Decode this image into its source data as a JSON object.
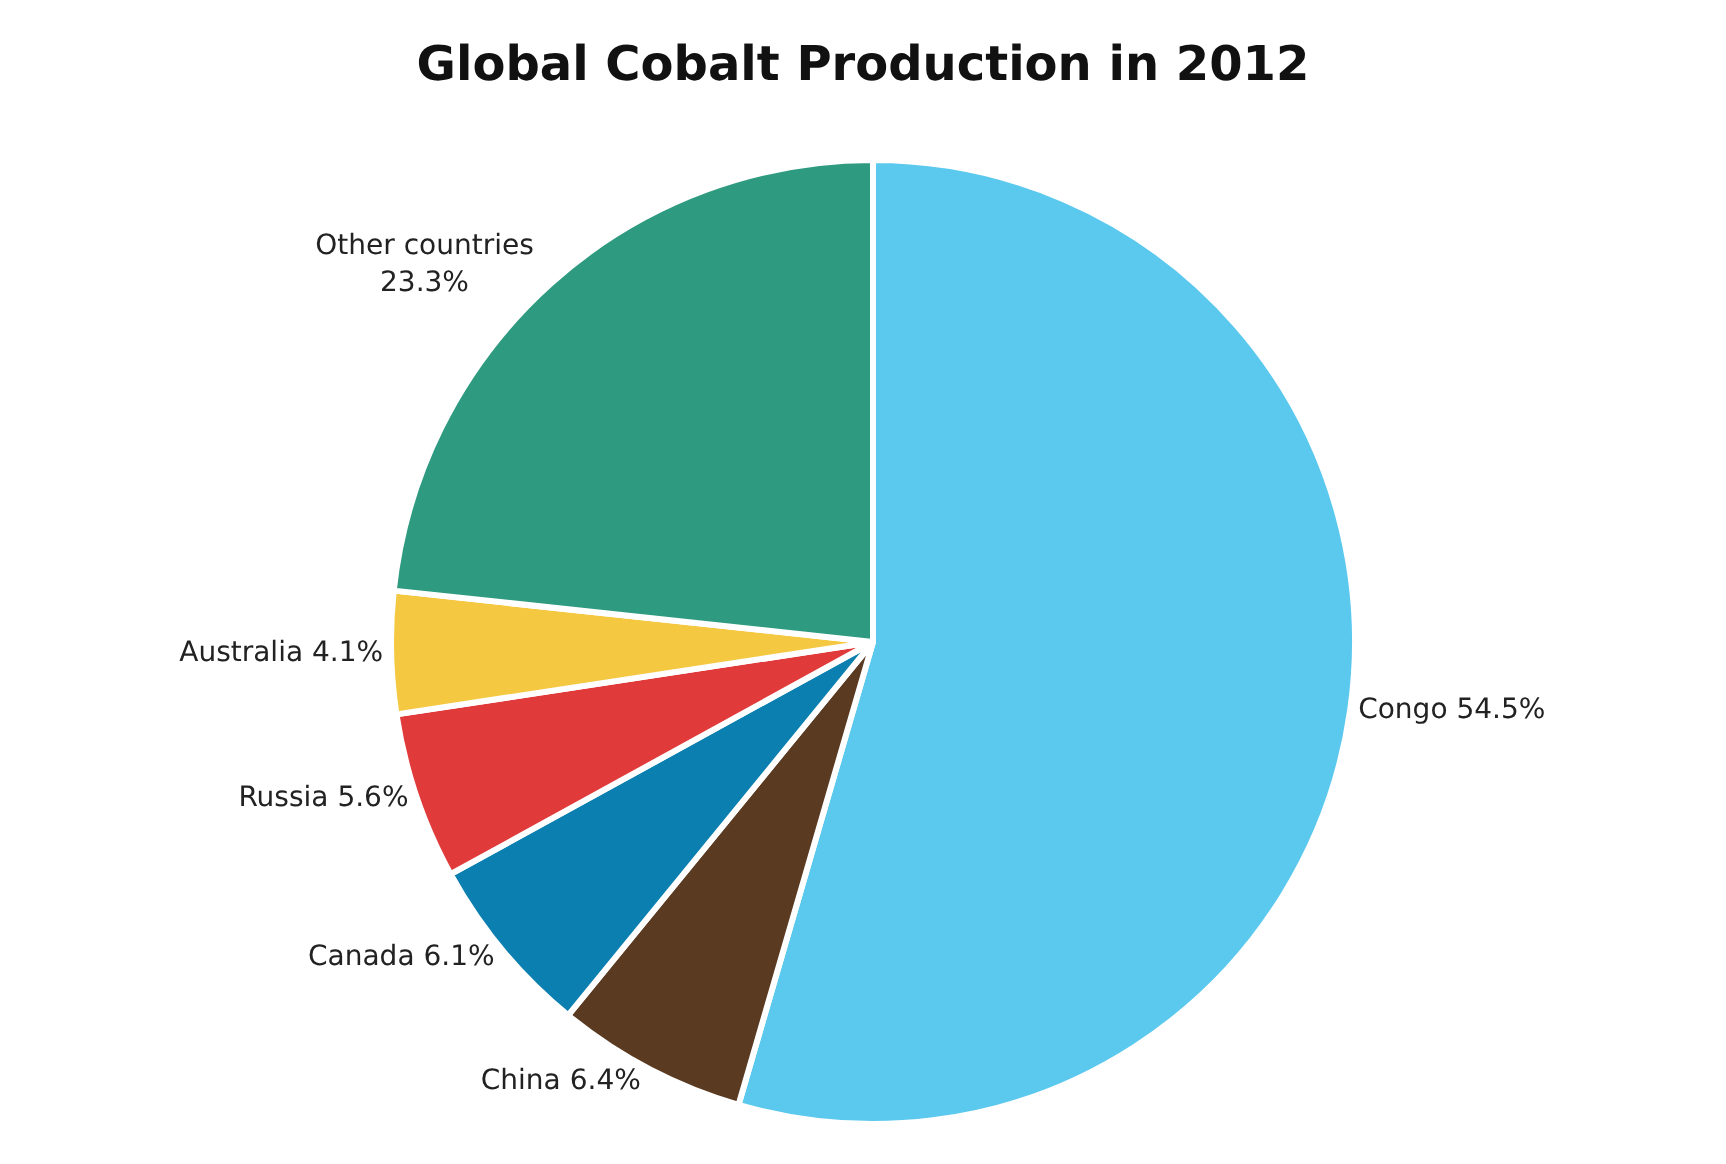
{
  "chart_data": {
    "type": "pie",
    "title": "Global Cobalt Production in 2012",
    "categories": [
      "Congo",
      "China",
      "Canada",
      "Russia",
      "Australia",
      "Other countries"
    ],
    "values": [
      54.5,
      6.4,
      6.1,
      5.6,
      4.1,
      23.3
    ],
    "colors": [
      "#5bc8ee",
      "#5a3b22",
      "#0a7fb0",
      "#e03a3a",
      "#f5c842",
      "#2e9a80"
    ],
    "value_labels": [
      "54.5%",
      "6.4%",
      "6.1%",
      "5.6%",
      "4.1%",
      "23.3%"
    ],
    "legend": false
  }
}
